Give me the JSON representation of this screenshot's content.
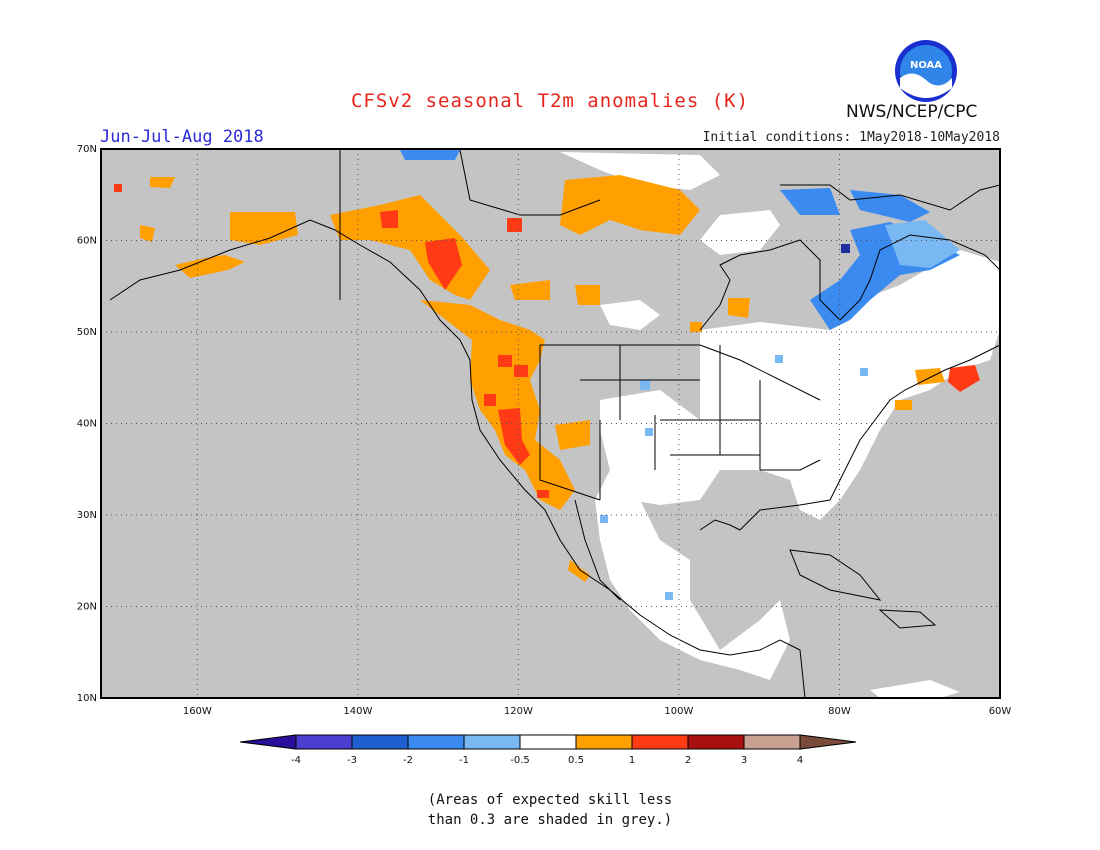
{
  "title": "CFSv2 seasonal T2m anomalies (K)",
  "period": "Jun-Jul-Aug 2018",
  "initial_conditions": "Initial conditions: 1May2018-10May2018",
  "organization": "NWS/NCEP/CPC",
  "logo_text": "NOAA",
  "note": "(Areas of expected skill less\nthan 0.3 are shaded in grey.)",
  "map": {
    "lon_range": [
      -172,
      -60
    ],
    "lat_range": [
      10,
      70
    ],
    "lat_labels": [
      "70N",
      "60N",
      "50N",
      "40N",
      "30N",
      "20N",
      "10N"
    ],
    "lon_labels": [
      "160W",
      "140W",
      "120W",
      "100W",
      "80W",
      "60W"
    ]
  },
  "colorbar": {
    "labels": [
      "-4",
      "-3",
      "-2",
      "-1",
      "-0.5",
      "0.5",
      "1",
      "2",
      "3",
      "4"
    ],
    "colors": [
      "#2a0f9a",
      "#4a3fd0",
      "#1f5fd0",
      "#3a8af0",
      "#7ab8f4",
      "#ffffff",
      "#ff9f00",
      "#ff3a14",
      "#a80f0f",
      "#c9a090",
      "#7a4a3a"
    ]
  },
  "colors": {
    "grey_low_skill": "#c4c4c4",
    "title": "#e8251c",
    "period": "#2b2bd6"
  }
}
